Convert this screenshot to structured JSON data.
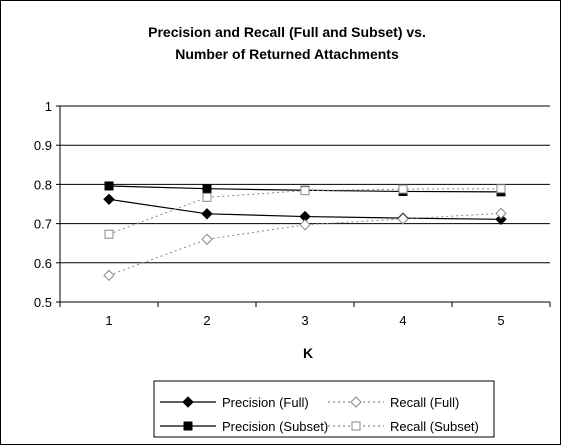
{
  "chart_data": {
    "type": "line",
    "title": "Precision and Recall (Full and Subset) vs.",
    "subtitle": "Number of Returned Attachments",
    "xlabel": "K",
    "ylabel": "",
    "x": [
      1,
      2,
      3,
      4,
      5
    ],
    "ylim": [
      0.5,
      1
    ],
    "yticks": [
      "0.5",
      "0.6",
      "0.7",
      "0.8",
      "0.9",
      "1"
    ],
    "xticks": [
      "1",
      "2",
      "3",
      "4",
      "5"
    ],
    "grid": true,
    "legend_position": "bottom",
    "series": [
      {
        "name": "Precision (Full)",
        "values": [
          0.762,
          0.725,
          0.718,
          0.714,
          0.711
        ],
        "marker": "diamond",
        "filled": true,
        "dashed": false,
        "color": "#000000"
      },
      {
        "name": "Recall (Full)",
        "values": [
          0.568,
          0.66,
          0.697,
          0.712,
          0.726
        ],
        "marker": "diamond",
        "filled": false,
        "dashed": true,
        "color": "#888888"
      },
      {
        "name": "Precision (Subset)",
        "values": [
          0.796,
          0.789,
          0.785,
          0.782,
          0.781
        ],
        "marker": "square",
        "filled": true,
        "dashed": false,
        "color": "#000000"
      },
      {
        "name": "Recall (Subset)",
        "values": [
          0.673,
          0.767,
          0.784,
          0.788,
          0.789
        ],
        "marker": "square",
        "filled": false,
        "dashed": true,
        "color": "#888888"
      }
    ]
  }
}
